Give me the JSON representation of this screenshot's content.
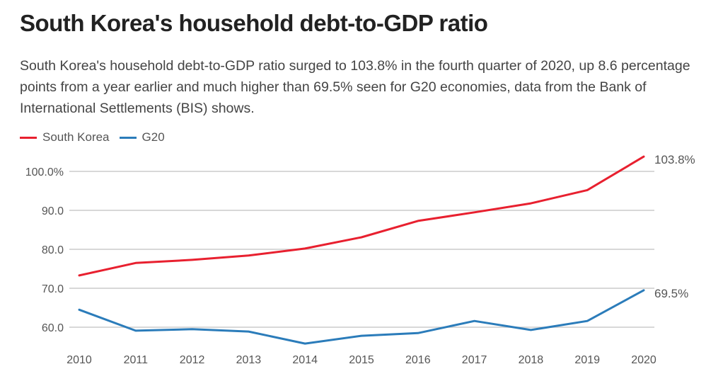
{
  "header": {
    "title": "South Korea's household debt-to-GDP ratio",
    "subtitle": "South Korea's household debt-to-GDP ratio surged to 103.8% in the fourth quarter of 2020, up 8.6 percentage points from a year earlier and much higher than 69.5% seen for G20 economies, data from the Bank of International Settlements (BIS) shows."
  },
  "legend": [
    {
      "label": "South Korea",
      "color": "#e8202f"
    },
    {
      "label": "G20",
      "color": "#2b7cba"
    }
  ],
  "chart_data": {
    "type": "line",
    "title": "South Korea's household debt-to-GDP ratio",
    "xlabel": "",
    "ylabel": "",
    "x": [
      "2010",
      "2011",
      "2012",
      "2013",
      "2014",
      "2015",
      "2016",
      "2017",
      "2018",
      "2019",
      "2020"
    ],
    "series": [
      {
        "name": "South Korea",
        "color": "#e8202f",
        "values": [
          73.3,
          76.5,
          77.3,
          78.4,
          80.2,
          83.1,
          87.3,
          89.5,
          91.8,
          95.2,
          103.8
        ],
        "end_label": "103.8%"
      },
      {
        "name": "G20",
        "color": "#2b7cba",
        "values": [
          64.5,
          59.1,
          59.5,
          58.9,
          55.8,
          57.8,
          58.5,
          61.6,
          59.3,
          61.6,
          69.5
        ],
        "end_label": "69.5%"
      }
    ],
    "yticks": [
      60,
      70,
      80,
      90,
      100
    ],
    "ytick_labels": [
      "60.0",
      "70.0",
      "80.0",
      "90.0",
      "100.0%"
    ],
    "ylim": [
      54,
      105
    ],
    "grid": true,
    "legend_position": "top-left"
  }
}
